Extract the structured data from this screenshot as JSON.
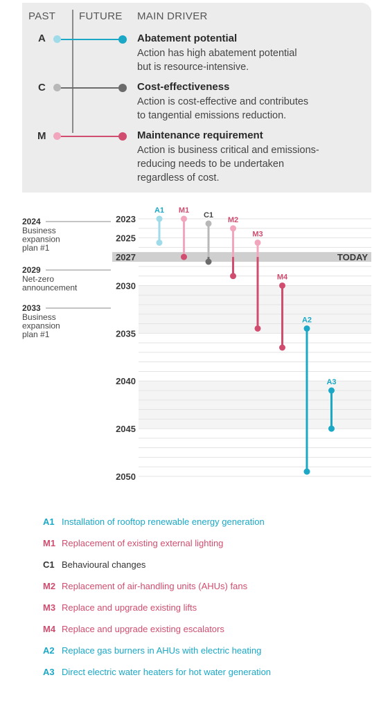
{
  "legend": {
    "header_past": "PAST",
    "header_future": "FUTURE",
    "header_driver": "MAIN DRIVER",
    "drivers": [
      {
        "letter": "A",
        "title": "Abatement potential",
        "desc": [
          "Action has high abatement potential",
          "but is resource-intensive."
        ],
        "color": "#1aa8c6",
        "light": "#9fdbe8"
      },
      {
        "letter": "C",
        "title": "Cost-effectiveness",
        "desc": [
          "Action is cost-effective and contributes",
          "to tangential emissions reduction."
        ],
        "color": "#6b6b6b",
        "light": "#b8b8b8"
      },
      {
        "letter": "M",
        "title": "Maintenance requirement",
        "desc": [
          "Action is business critical and emissions-",
          "reducing needs to be undertaken",
          "regardless of cost."
        ],
        "color": "#d04d6f",
        "light": "#f1a6bd"
      }
    ]
  },
  "timeline": {
    "today_label": "TODAY",
    "today_year": 2027,
    "year_labels": [
      "2023",
      "2025",
      "2027",
      "2030",
      "2035",
      "2040",
      "2045",
      "2050"
    ],
    "milestones": [
      {
        "year": "2024",
        "text": [
          "Business",
          "expansion",
          "plan #1"
        ]
      },
      {
        "year": "2029",
        "text": [
          "Net-zero",
          "announcement"
        ]
      },
      {
        "year": "2033",
        "text": [
          "Business",
          "expansion",
          "plan #1"
        ]
      }
    ],
    "actions": [
      {
        "code": "A1",
        "driver": "A",
        "start": 2023,
        "end": 2025.5
      },
      {
        "code": "M1",
        "driver": "M",
        "start": 2023,
        "end": 2027
      },
      {
        "code": "C1",
        "driver": "C",
        "start": 2023.5,
        "end": 2027.5
      },
      {
        "code": "M2",
        "driver": "M",
        "start": 2024,
        "end": 2029
      },
      {
        "code": "M3",
        "driver": "M",
        "start": 2025.5,
        "end": 2034.5
      },
      {
        "code": "M4",
        "driver": "M",
        "start": 2030,
        "end": 2036.5
      },
      {
        "code": "A2",
        "driver": "A",
        "start": 2034.5,
        "end": 2049.5
      },
      {
        "code": "A3",
        "driver": "A",
        "start": 2041,
        "end": 2045
      }
    ]
  },
  "footnotes": [
    {
      "code": "A1",
      "text": "Installation of rooftop renewable energy generation",
      "color": "#1aa8c6"
    },
    {
      "code": "M1",
      "text": "Replacement of existing external lighting",
      "color": "#d04d6f"
    },
    {
      "code": "C1",
      "text": "Behavioural changes",
      "color": "#333333"
    },
    {
      "code": "M2",
      "text": "Replacement of air-handling units (AHUs) fans",
      "color": "#d04d6f"
    },
    {
      "code": "M3",
      "text": "Replace and upgrade existing lifts",
      "color": "#d04d6f"
    },
    {
      "code": "M4",
      "text": "Replace and upgrade existing escalators",
      "color": "#d04d6f"
    },
    {
      "code": "A2",
      "text": "Replace gas burners in AHUs with electric heating",
      "color": "#1aa8c6"
    },
    {
      "code": "A3",
      "text": "Direct electric water heaters for hot water generation",
      "color": "#1aa8c6"
    }
  ]
}
